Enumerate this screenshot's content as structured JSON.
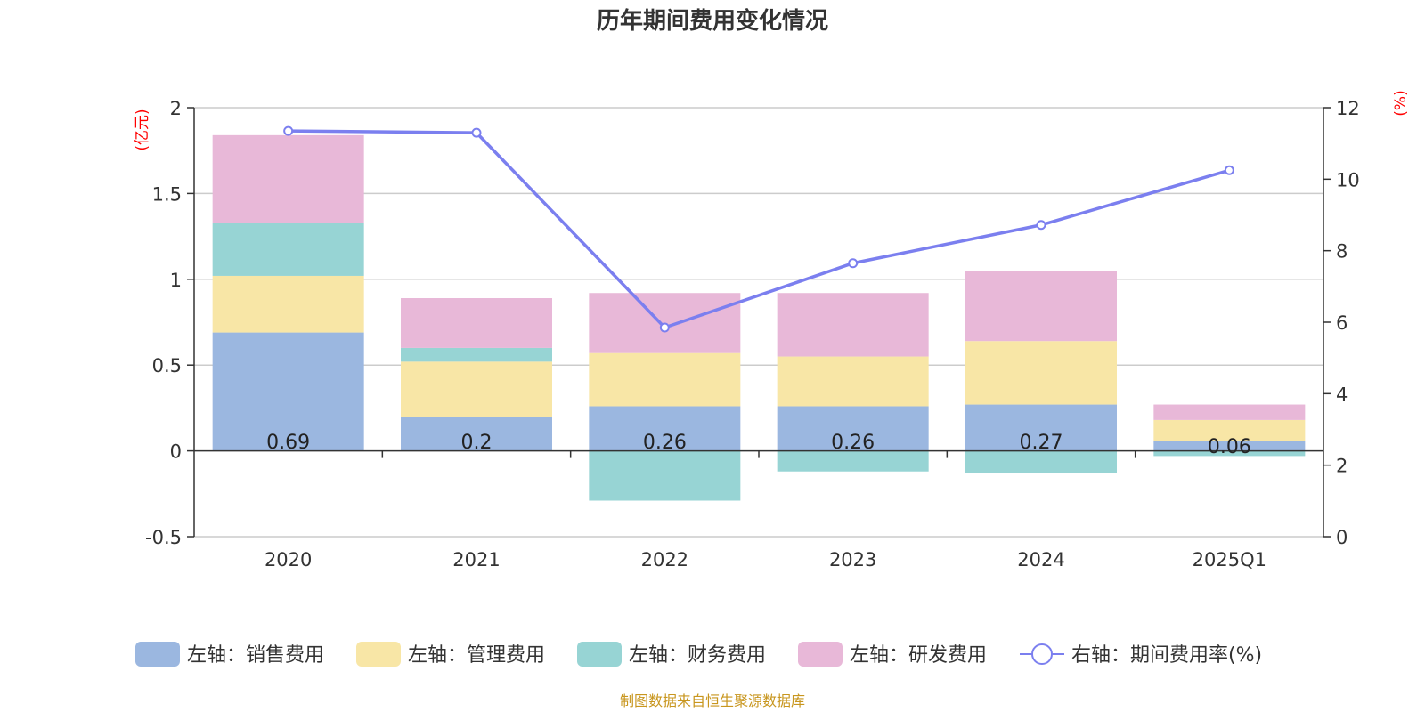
{
  "chart_data": {
    "type": "bar",
    "title": "历年期间费用变化情况",
    "categories": [
      "2020",
      "2021",
      "2022",
      "2023",
      "2024",
      "2025Q1"
    ],
    "left_axis": {
      "unit": "(亿元)",
      "ylim": [
        -0.5,
        2
      ],
      "ticks": [
        "2",
        "1.5",
        "1",
        "0.5",
        "0",
        "-0.5"
      ],
      "tick_values": [
        2,
        1.5,
        1,
        0.5,
        0,
        -0.5
      ]
    },
    "right_axis": {
      "unit": "(%)",
      "ylim": [
        0,
        12
      ],
      "ticks": [
        "12",
        "10",
        "8",
        "6",
        "4",
        "2",
        "0"
      ],
      "tick_values": [
        12,
        10,
        8,
        6,
        4,
        2,
        0
      ]
    },
    "series": [
      {
        "name": "左轴：销售费用",
        "type": "bar",
        "axis": "left",
        "color": "#9bb7e0",
        "values": [
          0.69,
          0.2,
          0.26,
          0.26,
          0.27,
          0.06
        ],
        "labels": [
          "0.69",
          "0.2",
          "0.26",
          "0.26",
          "0.27",
          "0.06"
        ]
      },
      {
        "name": "左轴：管理费用",
        "type": "bar",
        "axis": "left",
        "color": "#f8e6a6",
        "values": [
          0.33,
          0.32,
          0.31,
          0.29,
          0.37,
          0.12
        ]
      },
      {
        "name": "左轴：财务费用",
        "type": "bar",
        "axis": "left",
        "color": "#97d4d4",
        "values": [
          0.31,
          0.08,
          -0.29,
          -0.12,
          -0.13,
          -0.03
        ]
      },
      {
        "name": "左轴：研发费用",
        "type": "bar",
        "axis": "left",
        "color": "#e8b8d8",
        "values": [
          0.51,
          0.29,
          0.35,
          0.37,
          0.41,
          0.09
        ]
      },
      {
        "name": "右轴：期间费用率(%)",
        "type": "line",
        "axis": "right",
        "color": "#7b7fef",
        "values": [
          11.35,
          11.3,
          5.85,
          7.65,
          8.72,
          10.25
        ]
      }
    ]
  },
  "source_note": "制图数据来自恒生聚源数据库"
}
